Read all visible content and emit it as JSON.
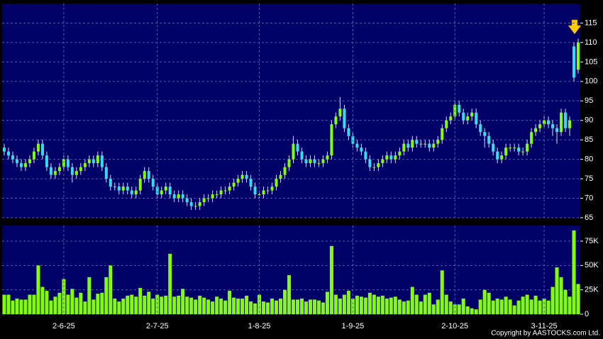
{
  "chart_data": [
    {
      "type": "candlestick",
      "up_color": "#7fff00",
      "down_color": "#33ddee",
      "wick_color": "#dddddd",
      "ylim": [
        65,
        120
      ],
      "yticks": [
        65,
        70,
        75,
        80,
        85,
        90,
        95,
        100,
        105,
        110,
        115
      ],
      "grid": true,
      "values": [
        [
          83,
          84,
          81,
          82
        ],
        [
          82,
          83,
          80,
          81
        ],
        [
          81,
          82,
          79,
          80
        ],
        [
          80,
          81,
          78,
          79
        ],
        [
          79,
          80,
          77,
          78
        ],
        [
          78,
          80,
          77,
          79
        ],
        [
          79,
          81,
          78,
          80
        ],
        [
          80,
          83,
          79,
          82
        ],
        [
          82,
          85,
          81,
          84
        ],
        [
          84,
          85,
          80,
          81
        ],
        [
          81,
          82,
          77,
          78
        ],
        [
          78,
          79,
          75,
          76
        ],
        [
          76,
          78,
          75,
          77
        ],
        [
          77,
          79,
          76,
          78
        ],
        [
          78,
          81,
          77,
          80
        ],
        [
          80,
          81,
          77,
          78
        ],
        [
          78,
          79,
          74,
          76
        ],
        [
          76,
          78,
          75,
          77
        ],
        [
          77,
          79,
          76,
          78
        ],
        [
          78,
          80,
          77,
          79
        ],
        [
          79,
          81,
          78,
          80
        ],
        [
          80,
          81,
          78,
          79
        ],
        [
          79,
          82,
          78,
          81
        ],
        [
          81,
          82,
          77,
          78
        ],
        [
          78,
          79,
          74,
          75
        ],
        [
          75,
          76,
          72,
          73
        ],
        [
          73,
          74,
          72,
          73
        ],
        [
          73,
          74,
          71,
          72
        ],
        [
          72,
          74,
          71,
          73
        ],
        [
          73,
          74,
          71,
          72
        ],
        [
          72,
          73,
          70,
          71
        ],
        [
          71,
          73,
          70,
          72
        ],
        [
          72,
          76,
          71,
          75
        ],
        [
          75,
          78,
          74,
          77
        ],
        [
          77,
          78,
          74,
          75
        ],
        [
          75,
          76,
          72,
          73
        ],
        [
          73,
          74,
          70,
          71
        ],
        [
          71,
          73,
          70,
          72
        ],
        [
          72,
          74,
          71,
          73
        ],
        [
          73,
          74,
          70,
          71
        ],
        [
          71,
          72,
          69,
          70
        ],
        [
          70,
          72,
          69,
          71
        ],
        [
          71,
          72,
          69,
          70
        ],
        [
          70,
          71,
          68,
          69
        ],
        [
          69,
          70,
          67,
          68
        ],
        [
          68,
          69,
          67,
          68
        ],
        [
          68,
          70,
          67,
          69
        ],
        [
          69,
          71,
          68,
          70
        ],
        [
          70,
          71,
          69,
          70
        ],
        [
          70,
          72,
          69,
          71
        ],
        [
          71,
          72,
          70,
          71
        ],
        [
          71,
          73,
          70,
          72
        ],
        [
          72,
          73,
          71,
          72
        ],
        [
          72,
          74,
          71,
          73
        ],
        [
          73,
          75,
          72,
          74
        ],
        [
          74,
          76,
          73,
          75
        ],
        [
          75,
          77,
          74,
          76
        ],
        [
          76,
          77,
          74,
          75
        ],
        [
          75,
          76,
          72,
          73
        ],
        [
          73,
          74,
          70,
          71
        ],
        [
          71,
          72,
          70,
          71
        ],
        [
          71,
          73,
          70,
          72
        ],
        [
          72,
          73,
          71,
          72
        ],
        [
          72,
          74,
          71,
          73
        ],
        [
          73,
          76,
          72,
          75
        ],
        [
          75,
          77,
          74,
          76
        ],
        [
          76,
          79,
          75,
          78
        ],
        [
          78,
          81,
          77,
          80
        ],
        [
          80,
          86,
          79,
          84
        ],
        [
          84,
          85,
          81,
          82
        ],
        [
          82,
          83,
          79,
          80
        ],
        [
          80,
          81,
          78,
          79
        ],
        [
          79,
          81,
          78,
          80
        ],
        [
          80,
          81,
          78,
          79
        ],
        [
          79,
          80,
          78,
          79
        ],
        [
          79,
          81,
          78,
          80
        ],
        [
          80,
          82,
          79,
          81
        ],
        [
          81,
          90,
          80,
          89
        ],
        [
          89,
          92,
          88,
          91
        ],
        [
          91,
          96,
          90,
          93
        ],
        [
          93,
          94,
          87,
          88
        ],
        [
          88,
          89,
          85,
          86
        ],
        [
          86,
          87,
          83,
          84
        ],
        [
          84,
          85,
          82,
          83
        ],
        [
          83,
          84,
          81,
          82
        ],
        [
          82,
          83,
          79,
          80
        ],
        [
          80,
          81,
          77,
          78
        ],
        [
          78,
          79,
          77,
          78
        ],
        [
          78,
          80,
          77,
          79
        ],
        [
          79,
          81,
          78,
          80
        ],
        [
          80,
          82,
          79,
          81
        ],
        [
          81,
          82,
          79,
          80
        ],
        [
          80,
          82,
          79,
          81
        ],
        [
          81,
          83,
          80,
          82
        ],
        [
          82,
          85,
          81,
          84
        ],
        [
          84,
          85,
          82,
          83
        ],
        [
          83,
          86,
          82,
          85
        ],
        [
          85,
          86,
          83,
          84
        ],
        [
          84,
          85,
          83,
          84
        ],
        [
          84,
          85,
          83,
          84
        ],
        [
          84,
          85,
          82,
          83
        ],
        [
          83,
          85,
          82,
          84
        ],
        [
          84,
          86,
          83,
          85
        ],
        [
          85,
          89,
          84,
          88
        ],
        [
          88,
          91,
          87,
          90
        ],
        [
          90,
          92,
          89,
          91
        ],
        [
          91,
          95,
          90,
          94
        ],
        [
          94,
          95,
          91,
          92
        ],
        [
          92,
          93,
          89,
          90
        ],
        [
          90,
          92,
          89,
          91
        ],
        [
          91,
          93,
          90,
          92
        ],
        [
          92,
          93,
          88,
          89
        ],
        [
          89,
          90,
          86,
          87
        ],
        [
          87,
          88,
          83,
          86
        ],
        [
          86,
          87,
          83,
          84
        ],
        [
          84,
          85,
          81,
          82
        ],
        [
          82,
          83,
          79,
          80
        ],
        [
          80,
          82,
          79,
          81
        ],
        [
          81,
          84,
          80,
          83
        ],
        [
          83,
          84,
          82,
          83
        ],
        [
          83,
          84,
          82,
          83
        ],
        [
          83,
          84,
          81,
          82
        ],
        [
          82,
          83,
          81,
          82
        ],
        [
          82,
          85,
          81,
          84
        ],
        [
          84,
          88,
          83,
          87
        ],
        [
          87,
          89,
          86,
          88
        ],
        [
          88,
          90,
          87,
          89
        ],
        [
          89,
          91,
          88,
          90
        ],
        [
          90,
          91,
          88,
          89
        ],
        [
          89,
          90,
          86,
          88
        ],
        [
          88,
          89,
          84,
          87
        ],
        [
          87,
          93,
          86,
          92
        ],
        [
          92,
          93,
          87,
          88
        ],
        [
          88,
          91,
          86,
          90
        ],
        [
          109,
          110,
          100,
          101
        ],
        [
          103,
          111,
          102,
          110
        ]
      ]
    },
    {
      "type": "bar",
      "color": "#7fff00",
      "ylim": [
        0,
        91000
      ],
      "yticks": [
        0,
        {
          "value": 25000,
          "label": "25K"
        },
        {
          "value": 50000,
          "label": "50K"
        },
        {
          "value": 75000,
          "label": "75K"
        }
      ],
      "grid": true,
      "categories": [
        null,
        null,
        null,
        null,
        null,
        null,
        null,
        null,
        null,
        null,
        null,
        null,
        null,
        null,
        "2-6-25",
        null,
        null,
        null,
        null,
        null,
        null,
        null,
        null,
        null,
        null,
        null,
        null,
        null,
        null,
        null,
        null,
        null,
        null,
        null,
        null,
        null,
        "2-7-25",
        null,
        null,
        null,
        null,
        null,
        null,
        null,
        null,
        null,
        null,
        null,
        null,
        null,
        null,
        null,
        null,
        null,
        null,
        null,
        null,
        null,
        null,
        null,
        "1-8-25",
        null,
        null,
        null,
        null,
        null,
        null,
        null,
        null,
        null,
        null,
        null,
        null,
        null,
        null,
        null,
        null,
        null,
        null,
        null,
        null,
        null,
        "1-9-25",
        null,
        null,
        null,
        null,
        null,
        null,
        null,
        null,
        null,
        null,
        null,
        null,
        null,
        null,
        null,
        null,
        null,
        null,
        null,
        null,
        null,
        null,
        null,
        "2-10-25",
        null,
        null,
        null,
        null,
        null,
        null,
        null,
        null,
        null,
        null,
        null,
        null,
        null,
        null,
        null,
        null,
        null,
        null,
        null,
        null,
        "3-11-25",
        null,
        null,
        null,
        null,
        null,
        null,
        null,
        null
      ],
      "values": [
        20000,
        20000,
        14000,
        16000,
        15000,
        15000,
        20000,
        20000,
        50000,
        28000,
        24000,
        14000,
        18000,
        22000,
        36000,
        20000,
        26000,
        17000,
        22000,
        13000,
        38000,
        15000,
        21000,
        22000,
        38000,
        50000,
        16000,
        13000,
        16000,
        19000,
        20000,
        18000,
        27000,
        19000,
        23000,
        16000,
        20000,
        18000,
        19000,
        62000,
        18000,
        19000,
        26000,
        18000,
        17000,
        15000,
        19000,
        17000,
        15000,
        13000,
        18000,
        16000,
        14000,
        24000,
        17000,
        16000,
        16000,
        19000,
        13000,
        11000,
        20000,
        13000,
        12000,
        16000,
        14000,
        16000,
        25000,
        40000,
        15000,
        15000,
        16000,
        13000,
        15000,
        15000,
        14000,
        12000,
        23000,
        70000,
        20000,
        16000,
        20000,
        24000,
        16000,
        19000,
        18000,
        17000,
        22000,
        20000,
        18000,
        19000,
        16000,
        17000,
        18000,
        15000,
        13000,
        14000,
        28000,
        20000,
        13000,
        20000,
        22000,
        10000,
        15000,
        45000,
        20000,
        13000,
        10000,
        10000,
        16000,
        8000,
        6000,
        5000,
        15000,
        25000,
        22000,
        14000,
        16000,
        15000,
        18000,
        15000,
        9000,
        14000,
        18000,
        20000,
        15000,
        19000,
        14000,
        16000,
        14000,
        28000,
        48000,
        38000,
        25000,
        18000,
        86000,
        31000
      ]
    }
  ],
  "copyright": "Copyright by AASTOCKS.com Ltd."
}
